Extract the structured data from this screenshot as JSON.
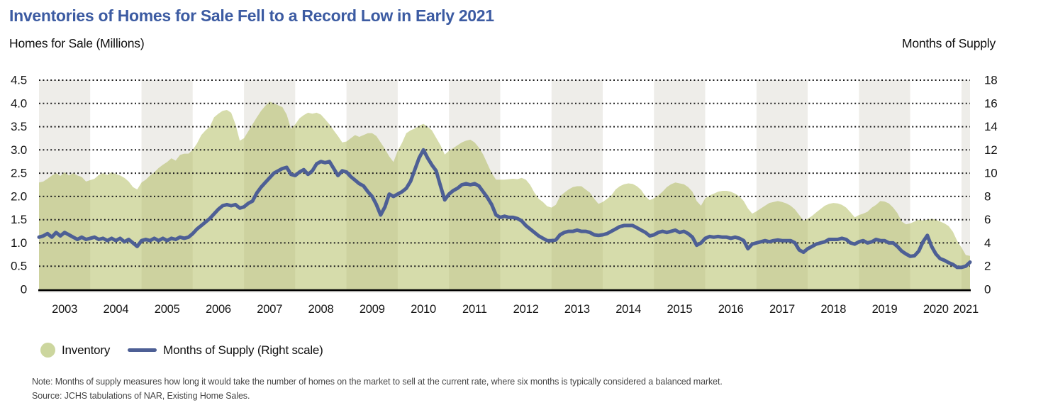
{
  "header": {
    "title": "Inventories of Homes for Sale Fell to a Record Low in Early 2021",
    "left_axis_title": "Homes for Sale (Millions)",
    "right_axis_title": "Months of Supply"
  },
  "legend": {
    "inventory_label": "Inventory",
    "supply_label": "Months of Supply (Right scale)"
  },
  "notes": {
    "note": "Note: Months of supply measures how long it would take the number of homes on the market to sell at the current rate, where six months is typically considered a balanced market.",
    "source": "Source: JCHS tabulations of NAR, Existing Home Sales."
  },
  "colors": {
    "title_blue": "#3C5BA2",
    "line_blue": "#4D5F95",
    "area_green": "#A4B144",
    "area_green_opacity": 0.45,
    "legend_green": "#CCD69E",
    "band_gray": "#EEEDE9",
    "grid_dot": "#1C1C1C",
    "axis_black": "#000000",
    "tick_text": "#141414"
  },
  "chart_data": {
    "type": "area+line",
    "title": "Inventories of Homes for Sale Fell to a Record Low in Early 2021",
    "x_start": 2003.0,
    "x_step": 0.08333,
    "x_range": [
      2003.0,
      2021.17
    ],
    "grid": "dotted-horizontal",
    "band_shading": "alternating-years-starting-gray-2003",
    "year_labels": [
      "2003",
      "2004",
      "2005",
      "2006",
      "2007",
      "2008",
      "2009",
      "2010",
      "2011",
      "2012",
      "2013",
      "2014",
      "2015",
      "2016",
      "2017",
      "2018",
      "2019",
      "2020",
      "2021"
    ],
    "left_axis": {
      "title": "Homes for Sale (Millions)",
      "range": [
        0,
        4.5
      ],
      "tick_labels": [
        "0",
        "0.5",
        "1.0",
        "1.5",
        "2.0",
        "2.5",
        "3.0",
        "3.5",
        "4.0",
        "4.5"
      ],
      "tick_values": [
        0,
        0.5,
        1.0,
        1.5,
        2.0,
        2.5,
        3.0,
        3.5,
        4.0,
        4.5
      ]
    },
    "right_axis": {
      "title": "Months of Supply",
      "range": [
        0,
        18
      ],
      "tick_labels": [
        "0",
        "2",
        "4",
        "6",
        "8",
        "10",
        "12",
        "14",
        "16",
        "18"
      ],
      "tick_values": [
        0,
        2,
        4,
        6,
        8,
        10,
        12,
        14,
        16,
        18
      ]
    },
    "series": [
      {
        "name": "Inventory",
        "type": "area",
        "axis": "left",
        "unit": "millions of homes",
        "values": [
          2.3,
          2.32,
          2.38,
          2.45,
          2.5,
          2.44,
          2.52,
          2.45,
          2.5,
          2.45,
          2.42,
          2.32,
          2.35,
          2.38,
          2.46,
          2.5,
          2.46,
          2.52,
          2.48,
          2.45,
          2.4,
          2.32,
          2.2,
          2.15,
          2.3,
          2.36,
          2.45,
          2.52,
          2.61,
          2.68,
          2.74,
          2.82,
          2.77,
          2.89,
          2.92,
          2.92,
          3.0,
          3.14,
          3.32,
          3.42,
          3.5,
          3.7,
          3.78,
          3.84,
          3.86,
          3.8,
          3.55,
          3.2,
          3.25,
          3.4,
          3.55,
          3.7,
          3.84,
          3.95,
          4.04,
          4.0,
          3.96,
          3.92,
          3.76,
          3.45,
          3.55,
          3.68,
          3.75,
          3.8,
          3.78,
          3.8,
          3.76,
          3.66,
          3.55,
          3.42,
          3.3,
          3.16,
          3.18,
          3.25,
          3.32,
          3.28,
          3.32,
          3.36,
          3.36,
          3.3,
          3.16,
          3.02,
          2.86,
          2.74,
          2.98,
          3.15,
          3.36,
          3.42,
          3.46,
          3.52,
          3.56,
          3.5,
          3.42,
          3.26,
          3.1,
          2.9,
          2.98,
          3.04,
          3.1,
          3.16,
          3.2,
          3.22,
          3.16,
          3.05,
          2.9,
          2.7,
          2.5,
          2.36,
          2.36,
          2.36,
          2.37,
          2.38,
          2.37,
          2.4,
          2.36,
          2.25,
          2.08,
          1.95,
          1.88,
          1.79,
          1.76,
          1.82,
          2.0,
          2.08,
          2.15,
          2.2,
          2.22,
          2.22,
          2.15,
          2.08,
          1.95,
          1.84,
          1.88,
          1.95,
          2.02,
          2.15,
          2.22,
          2.26,
          2.28,
          2.27,
          2.22,
          2.14,
          2.0,
          1.92,
          1.96,
          2.02,
          2.1,
          2.2,
          2.26,
          2.3,
          2.28,
          2.26,
          2.2,
          2.1,
          1.9,
          1.8,
          1.96,
          2.02,
          2.06,
          2.1,
          2.12,
          2.12,
          2.1,
          2.06,
          2.0,
          1.9,
          1.74,
          1.63,
          1.68,
          1.74,
          1.8,
          1.86,
          1.88,
          1.9,
          1.88,
          1.85,
          1.8,
          1.72,
          1.6,
          1.48,
          1.52,
          1.58,
          1.66,
          1.73,
          1.8,
          1.84,
          1.86,
          1.85,
          1.82,
          1.76,
          1.66,
          1.55,
          1.6,
          1.63,
          1.67,
          1.76,
          1.82,
          1.9,
          1.89,
          1.85,
          1.76,
          1.64,
          1.46,
          1.4,
          1.42,
          1.46,
          1.5,
          1.48,
          1.5,
          1.52,
          1.5,
          1.46,
          1.42,
          1.36,
          1.24,
          1.04,
          0.9,
          0.74,
          0.72
        ]
      },
      {
        "name": "Months of Supply (Right scale)",
        "type": "line",
        "axis": "right",
        "unit": "months",
        "values": [
          4.5,
          4.6,
          4.8,
          4.5,
          4.9,
          4.6,
          4.9,
          4.7,
          4.5,
          4.3,
          4.5,
          4.3,
          4.4,
          4.5,
          4.3,
          4.4,
          4.2,
          4.4,
          4.2,
          4.4,
          4.1,
          4.3,
          4.0,
          3.7,
          4.2,
          4.3,
          4.2,
          4.4,
          4.2,
          4.4,
          4.2,
          4.4,
          4.3,
          4.5,
          4.4,
          4.5,
          4.8,
          5.2,
          5.5,
          5.8,
          6.1,
          6.5,
          6.9,
          7.2,
          7.3,
          7.2,
          7.3,
          7.0,
          7.1,
          7.4,
          7.6,
          8.3,
          8.8,
          9.2,
          9.6,
          10.0,
          10.2,
          10.4,
          10.5,
          9.9,
          9.8,
          10.1,
          10.3,
          9.9,
          10.2,
          10.8,
          11.0,
          10.9,
          11.0,
          10.4,
          9.8,
          10.2,
          10.1,
          9.7,
          9.4,
          9.1,
          8.9,
          8.4,
          8.0,
          7.3,
          6.4,
          7.1,
          8.2,
          8.0,
          8.2,
          8.4,
          8.7,
          9.3,
          10.3,
          11.3,
          12.0,
          11.3,
          10.7,
          10.2,
          8.9,
          7.7,
          8.2,
          8.5,
          8.7,
          9.0,
          9.1,
          9.0,
          9.1,
          8.9,
          8.4,
          7.9,
          7.3,
          6.4,
          6.2,
          6.3,
          6.2,
          6.2,
          6.1,
          5.9,
          5.5,
          5.2,
          4.9,
          4.6,
          4.4,
          4.2,
          4.2,
          4.25,
          4.7,
          4.9,
          5.0,
          5.0,
          5.1,
          5.0,
          5.0,
          4.9,
          4.7,
          4.65,
          4.7,
          4.8,
          5.0,
          5.2,
          5.4,
          5.5,
          5.5,
          5.5,
          5.3,
          5.1,
          4.9,
          4.6,
          4.7,
          4.9,
          5.0,
          4.9,
          5.0,
          5.1,
          4.9,
          5.0,
          4.8,
          4.5,
          3.8,
          4.0,
          4.4,
          4.55,
          4.5,
          4.55,
          4.5,
          4.5,
          4.4,
          4.5,
          4.4,
          4.2,
          3.5,
          3.9,
          4.0,
          4.1,
          4.2,
          4.1,
          4.2,
          4.25,
          4.2,
          4.2,
          4.2,
          4.0,
          3.4,
          3.2,
          3.5,
          3.7,
          3.9,
          4.0,
          4.1,
          4.3,
          4.3,
          4.3,
          4.4,
          4.3,
          4.0,
          3.9,
          4.1,
          4.2,
          4.0,
          4.1,
          4.3,
          4.2,
          4.2,
          4.0,
          4.0,
          3.7,
          3.3,
          3.05,
          2.85,
          2.9,
          3.3,
          4.1,
          4.65,
          3.7,
          3.05,
          2.65,
          2.5,
          2.3,
          2.15,
          1.9,
          1.9,
          2.0,
          2.35
        ]
      }
    ]
  }
}
